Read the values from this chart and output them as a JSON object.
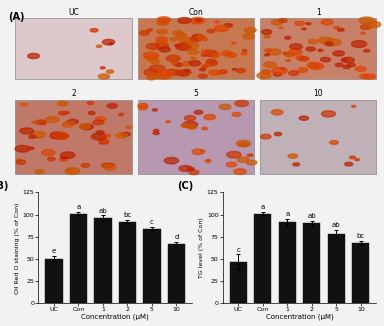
{
  "panel_A_label": "(A)",
  "panel_B_label": "(B)",
  "panel_C_label": "(C)",
  "B_categories": [
    "UC",
    "Con",
    "1",
    "2",
    "5",
    "10"
  ],
  "B_values": [
    50,
    101,
    96,
    92,
    84,
    67
  ],
  "B_errors": [
    3,
    2,
    3,
    2,
    2,
    2
  ],
  "B_ylabel": "Oil Red O staining (% of Con)",
  "B_xlabel": "Concentration (μM)",
  "B_ylim": [
    0,
    125
  ],
  "B_yticks": [
    0,
    25,
    50,
    75,
    100,
    125
  ],
  "B_letters": [
    "e",
    "a",
    "ab",
    "bc",
    "c",
    "d"
  ],
  "C_categories": [
    "UC",
    "Con",
    "1",
    "2",
    "5",
    "10"
  ],
  "C_values": [
    47,
    101,
    91,
    90,
    78,
    68
  ],
  "C_errors": [
    8,
    2,
    4,
    3,
    5,
    2
  ],
  "C_ylabel": "TG level (% of Con)",
  "C_xlabel": "Concentration (μM)",
  "C_ylim": [
    0,
    125
  ],
  "C_yticks": [
    0,
    25,
    50,
    75,
    100,
    125
  ],
  "C_letters": [
    "c",
    "a",
    "a",
    "ab",
    "ab",
    "bc"
  ],
  "bar_color": "#111111",
  "bar_edge_color": "#111111",
  "background_color": "#f2f2f2",
  "img_row1_labels": [
    "UC",
    "Con",
    "1"
  ],
  "img_row2_labels": [
    "2",
    "5",
    "10"
  ],
  "img_colors_row1": [
    "#d8c8cc",
    "#c87850",
    "#c88068"
  ],
  "img_colors_row2": [
    "#c07868",
    "#b890a0",
    "#b8a8b8"
  ]
}
